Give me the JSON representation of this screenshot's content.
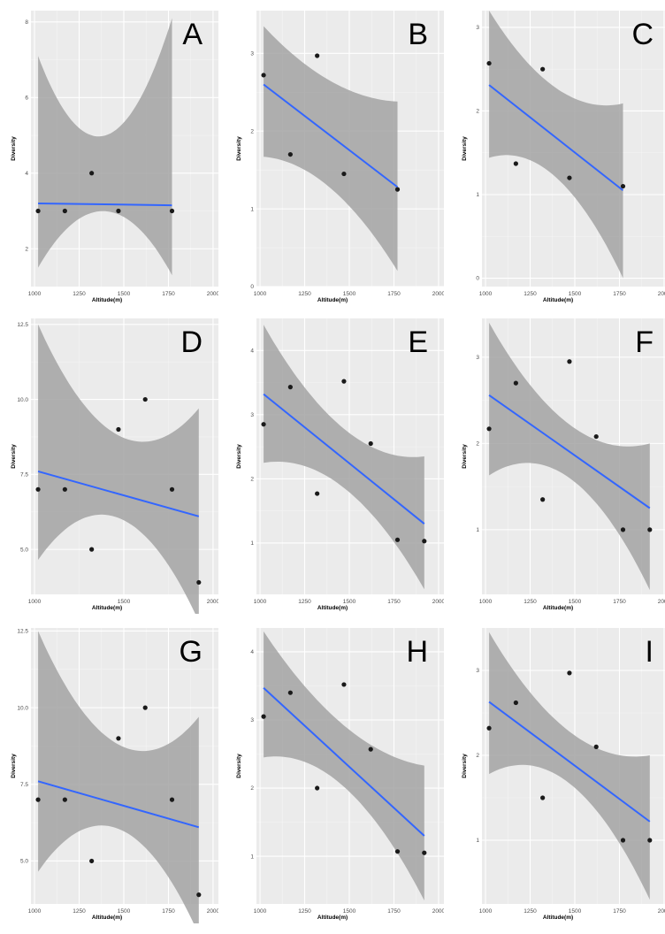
{
  "chart_data": [
    {
      "type": "scatter",
      "panel_label": "A",
      "xlabel": "Altitude(m)",
      "ylabel": "Diversity",
      "xlim": [
        980,
        2030
      ],
      "ylim": [
        1,
        8.3
      ],
      "xticks": [
        1000,
        1250,
        1500,
        1750,
        2000
      ],
      "yticks": [
        2,
        4,
        6,
        8
      ],
      "x": [
        1020,
        1170,
        1320,
        1470,
        1770
      ],
      "y": [
        3,
        3,
        4,
        3,
        3
      ],
      "fit": {
        "x": [
          1020,
          1770
        ],
        "y": [
          3.2,
          3.15
        ]
      },
      "band": {
        "x": [
          1020,
          1320,
          1770
        ],
        "upper": [
          7.1,
          5.0,
          8.1
        ],
        "lower": [
          1.5,
          2.95,
          1.3
        ]
      }
    },
    {
      "type": "scatter",
      "panel_label": "B",
      "xlabel": "Altitude(m)",
      "ylabel": "Diversity",
      "xlim": [
        980,
        2030
      ],
      "ylim": [
        0,
        3.55
      ],
      "xticks": [
        1000,
        1250,
        1500,
        1750,
        2000
      ],
      "yticks": [
        0,
        1,
        2,
        3
      ],
      "x": [
        1020,
        1170,
        1320,
        1470,
        1770
      ],
      "y": [
        2.72,
        1.7,
        2.97,
        1.45,
        1.25
      ],
      "fit": {
        "x": [
          1020,
          1770
        ],
        "y": [
          2.6,
          1.28
        ]
      },
      "band": {
        "x": [
          1020,
          1320,
          1770
        ],
        "upper": [
          3.35,
          2.75,
          2.38
        ],
        "lower": [
          1.67,
          1.4,
          0.2
        ]
      }
    },
    {
      "type": "scatter",
      "panel_label": "C",
      "xlabel": "Altitude(m)",
      "ylabel": "Diversity",
      "xlim": [
        980,
        2030
      ],
      "ylim": [
        -0.1,
        3.2
      ],
      "xticks": [
        1000,
        1250,
        1500,
        1750,
        2000
      ],
      "yticks": [
        0,
        1,
        2,
        3
      ],
      "x": [
        1020,
        1170,
        1320,
        1470,
        1770
      ],
      "y": [
        2.57,
        1.37,
        2.5,
        1.2,
        1.1
      ],
      "fit": {
        "x": [
          1020,
          1770
        ],
        "y": [
          2.31,
          1.05
        ]
      },
      "band": {
        "x": [
          1020,
          1320,
          1770
        ],
        "upper": [
          3.2,
          2.4,
          2.09
        ],
        "lower": [
          1.44,
          1.33,
          0.0
        ]
      }
    },
    {
      "type": "scatter",
      "panel_label": "D",
      "xlabel": "Altitude(m)",
      "ylabel": "Diversity",
      "xlim": [
        980,
        2030
      ],
      "ylim": [
        3.5,
        12.7
      ],
      "xticks": [
        1000,
        1500,
        2000
      ],
      "xtick_labels": [
        "1000",
        "1500",
        "2000"
      ],
      "yticks": [
        5,
        7.5,
        10,
        12.5
      ],
      "ytick_labels": [
        "5.0",
        "7.5",
        "10.0",
        "12.5"
      ],
      "x": [
        1020,
        1170,
        1320,
        1470,
        1620,
        1770,
        1920
      ],
      "y": [
        7,
        7,
        5,
        9,
        10,
        7,
        3.9
      ],
      "fit": {
        "x": [
          1020,
          1920
        ],
        "y": [
          7.6,
          6.1
        ]
      },
      "band": {
        "x": [
          1020,
          1470,
          1920
        ],
        "upper": [
          12.5,
          8.8,
          9.7
        ],
        "lower": [
          4.65,
          6.05,
          2.6
        ]
      }
    },
    {
      "type": "scatter",
      "panel_label": "E",
      "xlabel": "Altitude(m)",
      "ylabel": "Diversity",
      "xlim": [
        980,
        2030
      ],
      "ylim": [
        0.2,
        4.5
      ],
      "xticks": [
        1000,
        1250,
        1500,
        1750,
        2000
      ],
      "yticks": [
        1,
        2,
        3,
        4
      ],
      "x": [
        1020,
        1170,
        1320,
        1470,
        1620,
        1770,
        1920
      ],
      "y": [
        2.85,
        3.43,
        1.77,
        3.52,
        2.55,
        1.05,
        1.03
      ],
      "fit": {
        "x": [
          1020,
          1920
        ],
        "y": [
          3.32,
          1.3
        ]
      },
      "band": {
        "x": [
          1020,
          1470,
          1920
        ],
        "upper": [
          4.4,
          2.78,
          2.35
        ],
        "lower": [
          2.25,
          1.86,
          0.28
        ]
      }
    },
    {
      "type": "scatter",
      "panel_label": "F",
      "xlabel": "Altitude(m)",
      "ylabel": "Diversity",
      "xlim": [
        980,
        2030
      ],
      "ylim": [
        0.25,
        3.45
      ],
      "xticks": [
        1000,
        1250,
        1500,
        1750,
        2000
      ],
      "yticks": [
        1,
        2,
        3
      ],
      "x": [
        1020,
        1170,
        1320,
        1470,
        1620,
        1770,
        1920
      ],
      "y": [
        2.17,
        2.7,
        1.35,
        2.95,
        2.08,
        1.0,
        1.0
      ],
      "fit": {
        "x": [
          1020,
          1920
        ],
        "y": [
          2.56,
          1.25
        ]
      },
      "band": {
        "x": [
          1020,
          1470,
          1920
        ],
        "upper": [
          3.4,
          2.22,
          2.0
        ],
        "lower": [
          1.63,
          1.6,
          0.3
        ]
      }
    },
    {
      "type": "scatter",
      "panel_label": "G",
      "xlabel": "Altitude(m)",
      "ylabel": "Diversity",
      "xlim": [
        980,
        2030
      ],
      "ylim": [
        3.6,
        12.6
      ],
      "xticks": [
        1000,
        1250,
        1500,
        1750,
        2000
      ],
      "yticks": [
        5,
        7.5,
        10,
        12.5
      ],
      "ytick_labels": [
        "5.0",
        "7.5",
        "10.0",
        "12.5"
      ],
      "x": [
        1020,
        1170,
        1320,
        1470,
        1620,
        1770,
        1920
      ],
      "y": [
        7,
        7,
        5,
        9,
        10,
        7,
        3.9
      ],
      "fit": {
        "x": [
          1020,
          1920
        ],
        "y": [
          7.6,
          6.1
        ]
      },
      "band": {
        "x": [
          1020,
          1470,
          1920
        ],
        "upper": [
          12.5,
          8.8,
          9.7
        ],
        "lower": [
          4.65,
          6.05,
          2.6
        ]
      }
    },
    {
      "type": "scatter",
      "panel_label": "H",
      "xlabel": "Altitude(m)",
      "ylabel": "Diversity",
      "xlim": [
        980,
        2030
      ],
      "ylim": [
        0.3,
        4.35
      ],
      "xticks": [
        1000,
        1250,
        1500,
        1750,
        2000
      ],
      "yticks": [
        1,
        2,
        3,
        4
      ],
      "x": [
        1020,
        1170,
        1320,
        1470,
        1620,
        1770,
        1920
      ],
      "y": [
        3.05,
        3.4,
        2.0,
        3.52,
        2.57,
        1.07,
        1.05
      ],
      "fit": {
        "x": [
          1020,
          1920
        ],
        "y": [
          3.47,
          1.3
        ]
      },
      "band": {
        "x": [
          1020,
          1470,
          1920
        ],
        "upper": [
          4.3,
          2.92,
          2.33
        ],
        "lower": [
          2.45,
          2.02,
          0.35
        ]
      }
    },
    {
      "type": "scatter",
      "panel_label": "I",
      "xlabel": "Altitude(m)",
      "ylabel": "Diversity",
      "xlim": [
        980,
        2030
      ],
      "ylim": [
        0.25,
        3.5
      ],
      "xticks": [
        1000,
        1250,
        1500,
        1750,
        2000
      ],
      "yticks": [
        1,
        2,
        3
      ],
      "x": [
        1020,
        1170,
        1320,
        1470,
        1620,
        1770,
        1920
      ],
      "y": [
        2.32,
        2.62,
        1.5,
        2.97,
        2.1,
        1.0,
        1.0
      ],
      "fit": {
        "x": [
          1020,
          1920
        ],
        "y": [
          2.63,
          1.22
        ]
      },
      "band": {
        "x": [
          1020,
          1470,
          1920
        ],
        "upper": [
          3.45,
          2.28,
          2.0
        ],
        "lower": [
          1.78,
          1.67,
          0.3
        ]
      }
    }
  ],
  "style": {
    "panel_bg": "#ebebeb",
    "grid_major": "#ffffff",
    "grid_minor": "#f4f4f4",
    "band_fill": "#a3a3a3",
    "fit_line": "#3366ff",
    "point": "#1a1a1a",
    "tick_text": "#4d4d4d",
    "axis_label_text": "#000000"
  }
}
